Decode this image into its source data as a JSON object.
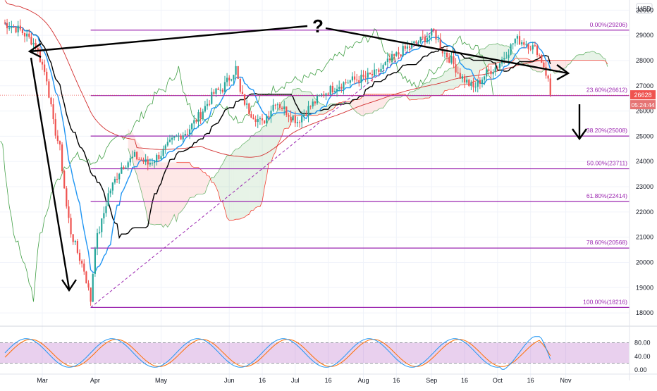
{
  "chart_data": {
    "type": "candlestick",
    "currency_label": "USD",
    "y_ticks": [
      18000,
      19000,
      20000,
      21000,
      22000,
      23000,
      24000,
      25000,
      26000,
      27000,
      28000,
      29000,
      30000
    ],
    "ylim": [
      17500,
      30400
    ],
    "x_ticks": [
      {
        "label": "Mar",
        "index": 0
      },
      {
        "label": "Apr",
        "index": 24
      },
      {
        "label": "May",
        "index": 54
      },
      {
        "label": "Jun",
        "index": 85
      },
      {
        "label": "16",
        "index": 100
      },
      {
        "label": "Jul",
        "index": 115
      },
      {
        "label": "16",
        "index": 130
      },
      {
        "label": "Aug",
        "index": 146
      },
      {
        "label": "16",
        "index": 161
      },
      {
        "label": "Sep",
        "index": 177
      },
      {
        "label": "16",
        "index": 192
      },
      {
        "label": "Oct",
        "index": 207
      },
      {
        "label": "16",
        "index": 222
      },
      {
        "label": "Nov",
        "index": 238
      }
    ],
    "fib_levels": [
      {
        "label": "0.00%(29206)",
        "value": 29206
      },
      {
        "label": "23.60%(26612)",
        "value": 26612
      },
      {
        "label": "38.20%(25008)",
        "value": 25008
      },
      {
        "label": "50.00%(23711)",
        "value": 23711
      },
      {
        "label": "61.80%(22414)",
        "value": 22414
      },
      {
        "label": "78.60%(20568)",
        "value": 20568
      },
      {
        "label": "100.00%(18216)",
        "value": 18216
      }
    ],
    "last_price": {
      "label": "26628",
      "value": 26628
    },
    "countdown_label": "05:24:44",
    "annotation_text": "?",
    "stoch_rsi": {
      "ticks": [
        0,
        40,
        80
      ],
      "tick_labels": [
        "0.00",
        "40.00",
        "80.00"
      ],
      "upper": 80,
      "lower": 20
    },
    "colors": {
      "up": "#26a69a",
      "down": "#ef5350",
      "fib": "#9c27b0",
      "tenkan": "#2196f3",
      "kijun": "#000000",
      "chikou": "#43a047",
      "span_b": "#f44336",
      "ma": "#d32f2f",
      "stoch_k": "#2196f3",
      "stoch_d": "#ff6d00"
    }
  }
}
